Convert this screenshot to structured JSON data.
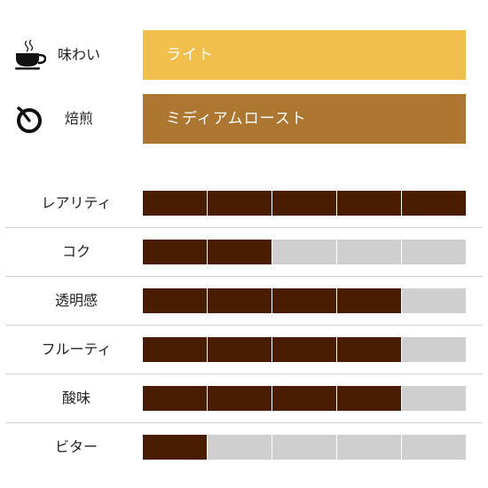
{
  "profile": {
    "flavor": {
      "icon": "coffee-cup-icon",
      "label": "味わい",
      "value": "ライト",
      "color": "#f0bf4c"
    },
    "roast": {
      "icon": "timer-icon",
      "label": "焙煎",
      "value": "ミディアムロースト",
      "color": "#ad7631"
    }
  },
  "ratings": {
    "max": 5,
    "filled_color": "#4a1c02",
    "empty_color": "#cfcfcf",
    "items": [
      {
        "label": "レアリティ",
        "value": 5
      },
      {
        "label": "コク",
        "value": 2
      },
      {
        "label": "透明感",
        "value": 4
      },
      {
        "label": "フルーティ",
        "value": 4
      },
      {
        "label": "酸味",
        "value": 4
      },
      {
        "label": "ビター",
        "value": 1
      }
    ]
  }
}
